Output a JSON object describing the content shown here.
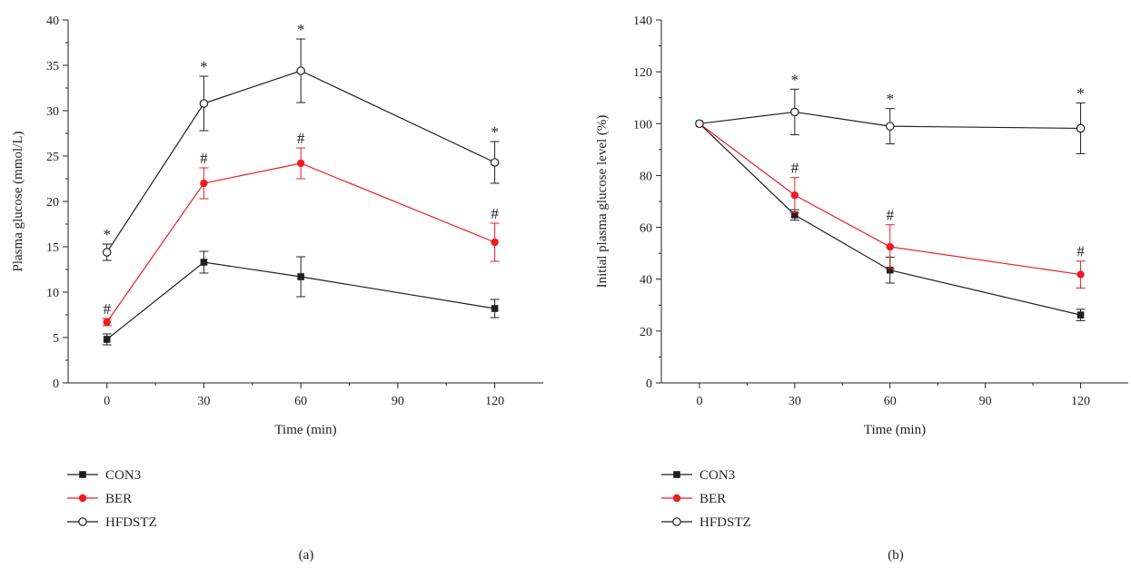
{
  "chart_data": [
    {
      "type": "line",
      "panel_label": "(a)",
      "title": "",
      "xlabel": "Time (min)",
      "ylabel": "Plasma glucose (mmol/L)",
      "xlim": [
        -12,
        135
      ],
      "ylim": [
        0,
        40
      ],
      "xticks": [
        0,
        30,
        60,
        90,
        120
      ],
      "xtick_labels": [
        "0",
        "30",
        "60",
        "90",
        "120"
      ],
      "yticks": [
        0,
        5,
        10,
        15,
        20,
        25,
        30,
        35,
        40
      ],
      "ytick_labels": [
        "0",
        "5",
        "10",
        "15",
        "20",
        "25",
        "30",
        "35",
        "40"
      ],
      "x": [
        0,
        30,
        60,
        120
      ],
      "grid": false,
      "legend_position": "below-left",
      "series": [
        {
          "name": "CON3",
          "color": "#231f20",
          "marker": "filled-square",
          "values": [
            4.8,
            13.3,
            11.7,
            8.2
          ],
          "errors": [
            0.6,
            1.2,
            2.2,
            1.0
          ],
          "annotations": [
            "",
            "",
            "",
            ""
          ]
        },
        {
          "name": "BER",
          "color": "#ed1c24",
          "marker": "filled-circle",
          "values": [
            6.7,
            22.0,
            24.2,
            15.5
          ],
          "errors": [
            0.4,
            1.7,
            1.7,
            2.1
          ],
          "annotations": [
            "#",
            "#",
            "#",
            "#"
          ]
        },
        {
          "name": "HFDSTZ",
          "color": "#231f20",
          "marker": "open-circle",
          "values": [
            14.4,
            30.8,
            34.4,
            24.3
          ],
          "errors": [
            0.9,
            3.0,
            3.5,
            2.3
          ],
          "annotations": [
            "*",
            "*",
            "*",
            "*"
          ]
        }
      ]
    },
    {
      "type": "line",
      "panel_label": "(b)",
      "title": "",
      "xlabel": "Time (min)",
      "ylabel": "Initial plasma glucose level (%)",
      "xlim": [
        -12,
        135
      ],
      "ylim": [
        0,
        140
      ],
      "xticks": [
        0,
        30,
        60,
        90,
        120
      ],
      "xtick_labels": [
        "0",
        "30",
        "60",
        "90",
        "120"
      ],
      "yticks": [
        0,
        20,
        40,
        60,
        80,
        100,
        120,
        140
      ],
      "ytick_labels": [
        "0",
        "20",
        "40",
        "60",
        "80",
        "100",
        "120",
        "140"
      ],
      "x": [
        0,
        30,
        60,
        120
      ],
      "grid": false,
      "legend_position": "below-left",
      "series": [
        {
          "name": "CON3",
          "color": "#231f20",
          "marker": "filled-square",
          "values": [
            100,
            64.8,
            43.5,
            26.2
          ],
          "errors": [
            0,
            2.0,
            5.0,
            2.2
          ],
          "annotations": [
            "",
            "",
            "",
            ""
          ]
        },
        {
          "name": "BER",
          "color": "#ed1c24",
          "marker": "filled-circle",
          "values": [
            100,
            72.4,
            52.5,
            41.8
          ],
          "errors": [
            0,
            6.8,
            8.5,
            5.2
          ],
          "annotations": [
            "",
            "#",
            "#",
            "#"
          ]
        },
        {
          "name": "HFDSTZ",
          "color": "#231f20",
          "marker": "open-circle",
          "values": [
            100,
            104.5,
            99.0,
            98.2
          ],
          "errors": [
            0,
            8.8,
            6.8,
            9.8
          ],
          "annotations": [
            "",
            "*",
            "*",
            "*"
          ]
        }
      ]
    }
  ]
}
